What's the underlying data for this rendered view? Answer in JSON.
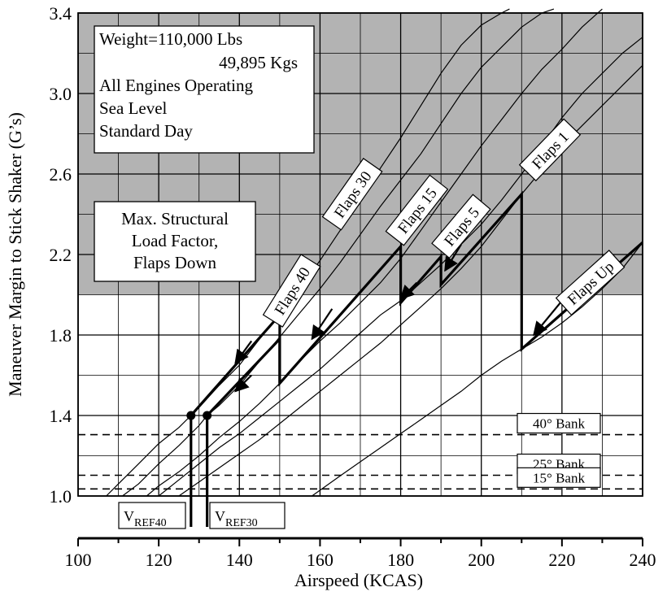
{
  "chart_data": {
    "type": "line",
    "xlabel": "Airspeed (KCAS)",
    "ylabel": "Maneuver Margin to Stick Shaker (G’s)",
    "xlim": [
      100,
      240
    ],
    "ylim": [
      1.0,
      3.4
    ],
    "x_ticks": [
      "100",
      "120",
      "140",
      "160",
      "180",
      "200",
      "220",
      "240"
    ],
    "y_ticks": [
      "1.0",
      "1.4",
      "1.8",
      "2.2",
      "2.6",
      "3.0",
      "3.4"
    ],
    "grid": true,
    "info_box": [
      "Weight=110,000 Lbs",
      "49,895 Kgs",
      "All Engines Operating",
      "Sea Level",
      "Standard Day"
    ],
    "structural_box": [
      "Max. Structural",
      "Load Factor,",
      "Flaps Down"
    ],
    "structural_limit_g": 2.0,
    "shade_color": "#b3b3b3",
    "series": [
      {
        "name": "Flaps 40",
        "x": [
          107,
          110,
          115,
          120,
          125,
          128,
          130,
          135,
          140,
          145,
          150,
          155,
          160,
          165,
          170,
          175,
          180,
          185,
          190,
          195,
          200,
          205,
          207
        ],
        "y": [
          1.0,
          1.06,
          1.16,
          1.26,
          1.34,
          1.4,
          1.44,
          1.55,
          1.65,
          1.78,
          1.9,
          2.03,
          2.17,
          2.32,
          2.47,
          2.63,
          2.78,
          2.94,
          3.1,
          3.24,
          3.34,
          3.4,
          3.42
        ]
      },
      {
        "name": "Flaps 30",
        "x": [
          111,
          115,
          120,
          125,
          130,
          132,
          135,
          140,
          145,
          150,
          155,
          160,
          165,
          170,
          175,
          180,
          185,
          190,
          195,
          200,
          205,
          210,
          215,
          218
        ],
        "y": [
          1.0,
          1.06,
          1.16,
          1.25,
          1.35,
          1.4,
          1.45,
          1.55,
          1.67,
          1.79,
          1.91,
          2.03,
          2.16,
          2.3,
          2.44,
          2.57,
          2.7,
          2.85,
          3.0,
          3.13,
          3.23,
          3.33,
          3.4,
          3.42
        ]
      },
      {
        "name": "Flaps 15",
        "x": [
          117,
          120,
          125,
          130,
          135,
          140,
          145,
          150,
          155,
          160,
          165,
          170,
          175,
          180,
          185,
          190,
          195,
          200,
          205,
          210,
          215,
          220,
          225,
          230
        ],
        "y": [
          1.0,
          1.05,
          1.12,
          1.2,
          1.29,
          1.37,
          1.46,
          1.56,
          1.67,
          1.77,
          1.86,
          1.96,
          2.06,
          2.18,
          2.32,
          2.46,
          2.6,
          2.74,
          2.87,
          3.0,
          3.12,
          3.22,
          3.33,
          3.42
        ]
      },
      {
        "name": "Flaps 5",
        "x": [
          120,
          125,
          130,
          135,
          140,
          145,
          150,
          155,
          160,
          165,
          170,
          175,
          180,
          185,
          190,
          195,
          200,
          205,
          210,
          215,
          220,
          225,
          230,
          235,
          240
        ],
        "y": [
          1.0,
          1.08,
          1.16,
          1.24,
          1.31,
          1.39,
          1.47,
          1.55,
          1.63,
          1.72,
          1.81,
          1.9,
          1.97,
          2.06,
          2.15,
          2.25,
          2.35,
          2.47,
          2.6,
          2.74,
          2.88,
          3.0,
          3.1,
          3.2,
          3.28
        ]
      },
      {
        "name": "Flaps 1",
        "x": [
          125,
          130,
          135,
          140,
          145,
          150,
          155,
          160,
          165,
          170,
          175,
          180,
          185,
          190,
          195,
          200,
          205,
          210,
          215,
          220,
          225,
          230,
          235,
          240
        ],
        "y": [
          1.0,
          1.07,
          1.14,
          1.21,
          1.28,
          1.36,
          1.44,
          1.52,
          1.6,
          1.68,
          1.76,
          1.85,
          1.94,
          2.03,
          2.13,
          2.24,
          2.37,
          2.5,
          2.62,
          2.74,
          2.84,
          2.94,
          3.04,
          3.14
        ]
      },
      {
        "name": "Flaps Up",
        "x": [
          158,
          165,
          170,
          175,
          180,
          185,
          190,
          195,
          200,
          205,
          210,
          215,
          220,
          225,
          230,
          235,
          240
        ],
        "y": [
          1.0,
          1.1,
          1.17,
          1.24,
          1.31,
          1.38,
          1.45,
          1.52,
          1.6,
          1.67,
          1.73,
          1.79,
          1.86,
          1.94,
          2.03,
          2.13,
          2.26
        ]
      }
    ],
    "schedule_upper": {
      "x": [
        128,
        150,
        150,
        180,
        180,
        190,
        190,
        210,
        210,
        240
      ],
      "y": [
        1.4,
        1.9,
        1.56,
        2.24,
        1.96,
        2.19,
        2.05,
        2.5,
        1.73,
        2.26
      ]
    },
    "schedule_lower": {
      "x": [
        132,
        150,
        150
      ],
      "y": [
        1.4,
        1.78,
        1.56
      ]
    },
    "dots": [
      {
        "x": 128,
        "y": 1.4
      },
      {
        "x": 132,
        "y": 1.4
      }
    ],
    "bank_lines": [
      {
        "label": "40° Bank",
        "g": 1.305
      },
      {
        "label": "25° Bank",
        "g": 1.103
      },
      {
        "label": "15° Bank",
        "g": 1.035
      }
    ],
    "vref": [
      {
        "base": "V",
        "sub": "REF40",
        "x": 128
      },
      {
        "base": "V",
        "sub": "REF30",
        "x": 132
      }
    ],
    "curve_labels": [
      {
        "text": "Flaps 40",
        "x": 153,
        "y": 2.02,
        "angle": -58
      },
      {
        "text": "Flaps 30",
        "x": 168,
        "y": 2.5,
        "angle": -55
      },
      {
        "text": "Flaps 15",
        "x": 184,
        "y": 2.42,
        "angle": -52
      },
      {
        "text": "Flaps 5",
        "x": 195,
        "y": 2.34,
        "angle": -50
      },
      {
        "text": "Flaps 1",
        "x": 217,
        "y": 2.72,
        "angle": -46
      },
      {
        "text": "Flaps Up",
        "x": 227,
        "y": 2.06,
        "angle": -42
      }
    ],
    "arrows": [
      {
        "x1": 143,
        "y1": 1.77,
        "x2": 139,
        "y2": 1.66
      },
      {
        "x1": 143,
        "y1": 1.6,
        "x2": 139,
        "y2": 1.52
      },
      {
        "x1": 163,
        "y1": 1.93,
        "x2": 158,
        "y2": 1.78
      },
      {
        "x1": 184,
        "y1": 2.06,
        "x2": 180,
        "y2": 1.98
      },
      {
        "x1": 195,
        "y1": 2.25,
        "x2": 191,
        "y2": 2.12
      },
      {
        "x1": 220,
        "y1": 1.97,
        "x2": 213,
        "y2": 1.8
      }
    ]
  }
}
